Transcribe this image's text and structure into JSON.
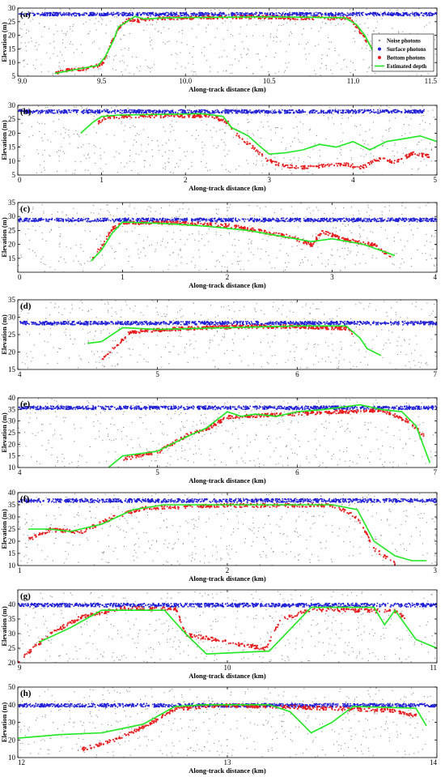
{
  "figure": {
    "colors": {
      "noise": "#8c8c8c",
      "surface": "#1f1fd6",
      "bottom": "#e8191b",
      "depth": "#1ee81e",
      "axis": "#000000"
    },
    "legend": {
      "entries": [
        {
          "key": "noise",
          "label": "Noise photons"
        },
        {
          "key": "surface",
          "label": "Surface photons"
        },
        {
          "key": "bottom",
          "label": "Bottom photons"
        },
        {
          "key": "depth",
          "label": "Estimated depth"
        }
      ]
    }
  },
  "chart_data": [
    {
      "id": "a",
      "panel_label": "(a)",
      "type": "scatter",
      "xlabel": "Along-track distance (km)",
      "ylabel": "Elevation (m)",
      "xlim": [
        9.0,
        11.5
      ],
      "ylim": [
        5,
        30
      ],
      "xticks": [
        9.0,
        9.5,
        10.0,
        10.5,
        11.0,
        11.5
      ],
      "xtick_labels": [
        "9.0",
        "9.5",
        "10.0",
        "10.5",
        "11.0",
        "11.5"
      ],
      "yticks": [
        5,
        10,
        15,
        20,
        25,
        30
      ],
      "ytick_labels": [
        "5",
        "10",
        "15",
        "20",
        "25",
        "30"
      ],
      "legend": true,
      "surface_level": 28,
      "surface_range": [
        9.0,
        11.5
      ],
      "noise_range": [
        9.0,
        11.5
      ],
      "depth": [
        [
          9.22,
          6
        ],
        [
          9.35,
          7.5
        ],
        [
          9.48,
          9
        ],
        [
          9.52,
          12
        ],
        [
          9.57,
          18
        ],
        [
          9.6,
          23
        ],
        [
          9.65,
          25
        ],
        [
          9.7,
          27
        ],
        [
          9.75,
          26
        ],
        [
          9.9,
          26.5
        ],
        [
          10.5,
          26.8
        ],
        [
          10.95,
          26.5
        ],
        [
          11.02,
          24
        ],
        [
          11.07,
          20
        ],
        [
          11.12,
          14
        ],
        [
          11.15,
          11
        ]
      ],
      "bottom": [
        [
          9.22,
          6.5
        ],
        [
          9.3,
          7.5
        ],
        [
          9.4,
          8
        ],
        [
          9.5,
          9.5
        ],
        [
          9.55,
          17
        ],
        [
          9.6,
          23
        ],
        [
          9.65,
          26
        ],
        [
          9.7,
          25.5
        ],
        [
          9.8,
          26.5
        ],
        [
          10.3,
          27
        ],
        [
          10.98,
          26.5
        ],
        [
          11.02,
          23
        ],
        [
          11.08,
          18
        ],
        [
          11.12,
          15
        ],
        [
          11.16,
          13
        ]
      ]
    },
    {
      "id": "b",
      "panel_label": "(b)",
      "type": "scatter",
      "xlabel": "Along-track distance (km)",
      "ylabel": "Elevation (m)",
      "xlim": [
        0,
        5
      ],
      "ylim": [
        5,
        30
      ],
      "xticks": [
        0,
        1,
        2,
        3,
        4,
        5
      ],
      "xtick_labels": [
        "0",
        "1",
        "2",
        "3",
        "4",
        "5"
      ],
      "yticks": [
        5,
        10,
        15,
        20,
        25,
        30
      ],
      "ytick_labels": [
        "5",
        "10",
        "15",
        "20",
        "25",
        "30"
      ],
      "legend": false,
      "surface_level": 28,
      "surface_range": [
        0.0,
        4.85
      ],
      "noise_range": [
        0.0,
        5.0
      ],
      "depth": [
        [
          0.75,
          20
        ],
        [
          0.9,
          24
        ],
        [
          1.0,
          26
        ],
        [
          1.2,
          26.5
        ],
        [
          2.2,
          27
        ],
        [
          2.45,
          26
        ],
        [
          2.55,
          22
        ],
        [
          2.75,
          19
        ],
        [
          2.9,
          15
        ],
        [
          3.0,
          12.5
        ],
        [
          3.2,
          13
        ],
        [
          3.4,
          14
        ],
        [
          3.6,
          16
        ],
        [
          3.8,
          15
        ],
        [
          4.0,
          17
        ],
        [
          4.2,
          14
        ],
        [
          4.4,
          17
        ],
        [
          4.6,
          18
        ],
        [
          4.8,
          19
        ],
        [
          5.0,
          17
        ]
      ],
      "bottom": [
        [
          0.95,
          24
        ],
        [
          1.05,
          26
        ],
        [
          1.5,
          26.5
        ],
        [
          2.3,
          26.5
        ],
        [
          2.5,
          24
        ],
        [
          2.6,
          20
        ],
        [
          2.8,
          15
        ],
        [
          2.95,
          11
        ],
        [
          3.1,
          9
        ],
        [
          3.3,
          8
        ],
        [
          3.5,
          8
        ],
        [
          3.7,
          9
        ],
        [
          3.9,
          9
        ],
        [
          4.1,
          8
        ],
        [
          4.3,
          11
        ],
        [
          4.5,
          10
        ],
        [
          4.7,
          13
        ],
        [
          4.9,
          12
        ]
      ]
    },
    {
      "id": "c",
      "panel_label": "(c)",
      "type": "scatter",
      "xlabel": "Along-track distance (km)",
      "ylabel": "Elevation (m)",
      "xlim": [
        0,
        4
      ],
      "ylim": [
        10,
        35
      ],
      "xticks": [
        0,
        1,
        2,
        3,
        4
      ],
      "xtick_labels": [
        "0",
        "1",
        "2",
        "3",
        "4"
      ],
      "yticks": [
        15,
        20,
        25,
        30,
        35
      ],
      "ytick_labels": [
        "15",
        "20",
        "25",
        "30",
        "35"
      ],
      "legend": false,
      "surface_level": 29,
      "surface_range": [
        0.0,
        4.0
      ],
      "noise_range": [
        0.0,
        4.0
      ],
      "depth": [
        [
          0.7,
          14
        ],
        [
          0.8,
          18
        ],
        [
          0.9,
          24
        ],
        [
          1.0,
          28
        ],
        [
          1.4,
          27.5
        ],
        [
          1.8,
          26.5
        ],
        [
          2.2,
          25
        ],
        [
          2.5,
          23
        ],
        [
          2.8,
          21
        ],
        [
          3.0,
          22
        ],
        [
          3.3,
          20
        ],
        [
          3.6,
          16
        ]
      ],
      "bottom": [
        [
          0.7,
          15
        ],
        [
          0.8,
          20
        ],
        [
          0.9,
          26
        ],
        [
          1.0,
          28
        ],
        [
          1.5,
          28
        ],
        [
          2.0,
          27
        ],
        [
          2.3,
          25
        ],
        [
          2.6,
          23
        ],
        [
          2.8,
          20
        ],
        [
          2.9,
          25
        ],
        [
          3.1,
          22
        ],
        [
          3.4,
          20
        ],
        [
          3.55,
          16
        ]
      ]
    },
    {
      "id": "d",
      "panel_label": "(d)",
      "type": "scatter",
      "xlabel": "",
      "ylabel": "Elevation (m)",
      "xlim": [
        4,
        7
      ],
      "ylim": [
        15,
        35
      ],
      "xticks": [
        4,
        5,
        6,
        7
      ],
      "xtick_labels": [
        "4",
        "5",
        "6",
        "7"
      ],
      "yticks": [
        15,
        20,
        25,
        30,
        35
      ],
      "ytick_labels": [
        "15",
        "20",
        "25",
        "30",
        "35"
      ],
      "legend": false,
      "surface_level": 28.5,
      "surface_range": [
        4.0,
        7.0
      ],
      "noise_range": [
        4.0,
        7.0
      ],
      "depth": [
        [
          4.5,
          22.5
        ],
        [
          4.6,
          23
        ],
        [
          4.75,
          27
        ],
        [
          5.0,
          26.5
        ],
        [
          5.5,
          27
        ],
        [
          6.0,
          27.5
        ],
        [
          6.35,
          27.5
        ],
        [
          6.45,
          24
        ],
        [
          6.5,
          21
        ],
        [
          6.6,
          19
        ]
      ],
      "bottom": [
        [
          4.6,
          18
        ],
        [
          4.7,
          22
        ],
        [
          4.8,
          26
        ],
        [
          5.2,
          27
        ],
        [
          5.6,
          27.5
        ],
        [
          6.0,
          27.5
        ],
        [
          6.35,
          27
        ],
        [
          6.4,
          25
        ]
      ]
    },
    {
      "id": "e",
      "panel_label": "(e)",
      "type": "scatter",
      "xlabel": "Along-track distance (km)",
      "ylabel": "Elevation (m)",
      "xlim": [
        4,
        7
      ],
      "ylim": [
        10,
        40
      ],
      "xticks": [
        4,
        5,
        6,
        7
      ],
      "xtick_labels": [
        "4",
        "5",
        "6",
        "7"
      ],
      "yticks": [
        10,
        15,
        20,
        25,
        30,
        35,
        40
      ],
      "ytick_labels": [
        "10",
        "15",
        "20",
        "25",
        "30",
        "35",
        "40"
      ],
      "legend": false,
      "surface_level": 36,
      "surface_range": [
        4.0,
        7.0
      ],
      "noise_range": [
        4.0,
        7.0
      ],
      "depth": [
        [
          4.65,
          10
        ],
        [
          4.75,
          15
        ],
        [
          5.0,
          17
        ],
        [
          5.2,
          23
        ],
        [
          5.35,
          27
        ],
        [
          5.5,
          34
        ],
        [
          5.6,
          32
        ],
        [
          5.7,
          33
        ],
        [
          5.85,
          32
        ],
        [
          6.0,
          34
        ],
        [
          6.2,
          35
        ],
        [
          6.45,
          37
        ],
        [
          6.6,
          35
        ],
        [
          6.75,
          34
        ],
        [
          6.85,
          28
        ],
        [
          6.95,
          12
        ]
      ],
      "bottom": [
        [
          4.75,
          14
        ],
        [
          5.0,
          17
        ],
        [
          5.2,
          24
        ],
        [
          5.35,
          27
        ],
        [
          5.5,
          32
        ],
        [
          5.85,
          33
        ],
        [
          6.2,
          34
        ],
        [
          6.6,
          35
        ],
        [
          6.8,
          30
        ],
        [
          6.9,
          24
        ]
      ]
    },
    {
      "id": "f",
      "panel_label": "(f)",
      "type": "scatter",
      "xlabel": "Along-track distance (km)",
      "ylabel": "Elevation (m)",
      "xlim": [
        1,
        3
      ],
      "ylim": [
        10,
        40
      ],
      "xticks": [
        1,
        2,
        3
      ],
      "xtick_labels": [
        "1",
        "2",
        "3"
      ],
      "yticks": [
        10,
        15,
        20,
        25,
        30,
        35,
        40
      ],
      "ytick_labels": [
        "10",
        "15",
        "20",
        "25",
        "30",
        "35",
        "40"
      ],
      "legend": false,
      "surface_level": 37,
      "surface_range": [
        1.0,
        3.0
      ],
      "noise_range": [
        1.0,
        3.0
      ],
      "depth": [
        [
          1.05,
          25
        ],
        [
          1.15,
          25
        ],
        [
          1.25,
          24
        ],
        [
          1.4,
          27
        ],
        [
          1.55,
          33
        ],
        [
          1.7,
          35
        ],
        [
          2.0,
          35
        ],
        [
          2.5,
          35
        ],
        [
          2.62,
          33
        ],
        [
          2.7,
          20
        ],
        [
          2.8,
          14
        ],
        [
          2.88,
          12
        ],
        [
          2.95,
          12
        ]
      ],
      "bottom": [
        [
          1.05,
          21
        ],
        [
          1.15,
          25
        ],
        [
          1.3,
          24
        ],
        [
          1.45,
          30
        ],
        [
          1.6,
          34
        ],
        [
          2.0,
          35
        ],
        [
          2.5,
          35
        ],
        [
          2.62,
          30
        ],
        [
          2.7,
          17
        ],
        [
          2.8,
          11
        ]
      ]
    },
    {
      "id": "g",
      "panel_label": "(g)",
      "type": "scatter",
      "xlabel": "Along-track distance (km)",
      "ylabel": "Elevation (m)",
      "xlim": [
        9,
        11
      ],
      "ylim": [
        20,
        45
      ],
      "xticks": [
        9,
        10,
        11
      ],
      "xtick_labels": [
        "9",
        "10",
        "11"
      ],
      "yticks": [
        20,
        25,
        30,
        35,
        40
      ],
      "ytick_labels": [
        "20",
        "25",
        "30",
        "35",
        "40"
      ],
      "legend": false,
      "surface_level": 40,
      "surface_range": [
        9.0,
        11.0
      ],
      "noise_range": [
        9.0,
        11.0
      ],
      "depth": [
        [
          9.1,
          27
        ],
        [
          9.25,
          32
        ],
        [
          9.4,
          38
        ],
        [
          9.7,
          38
        ],
        [
          9.8,
          30
        ],
        [
          9.9,
          23
        ],
        [
          10.2,
          24
        ],
        [
          10.4,
          39
        ],
        [
          10.7,
          39
        ],
        [
          10.75,
          33
        ],
        [
          10.8,
          38
        ],
        [
          10.9,
          28
        ],
        [
          11.0,
          25
        ]
      ],
      "bottom": [
        [
          9.0,
          21
        ],
        [
          9.15,
          30
        ],
        [
          9.3,
          36
        ],
        [
          9.5,
          39
        ],
        [
          9.75,
          38.5
        ],
        [
          9.8,
          30
        ],
        [
          10.18,
          25
        ],
        [
          10.25,
          35
        ],
        [
          10.4,
          38.5
        ],
        [
          10.7,
          38
        ],
        [
          10.8,
          38
        ],
        [
          10.85,
          35
        ]
      ]
    },
    {
      "id": "h",
      "panel_label": "(h)",
      "type": "scatter",
      "xlabel": "Along-track distance (km)",
      "ylabel": "Elevation (m)",
      "xlim": [
        12,
        14
      ],
      "ylim": [
        10,
        50
      ],
      "xticks": [
        12,
        13,
        14
      ],
      "xtick_labels": [
        "12",
        "13",
        "14"
      ],
      "yticks": [
        10,
        20,
        30,
        40,
        50
      ],
      "ytick_labels": [
        "10",
        "20",
        "30",
        "40",
        "50"
      ],
      "legend": false,
      "surface_level": 40,
      "surface_range": [
        12.0,
        14.0
      ],
      "noise_range": [
        12.0,
        14.0
      ],
      "depth": [
        [
          12.0,
          21
        ],
        [
          12.2,
          23
        ],
        [
          12.4,
          24
        ],
        [
          12.6,
          29
        ],
        [
          12.75,
          39
        ],
        [
          12.9,
          40
        ],
        [
          13.2,
          40
        ],
        [
          13.3,
          36
        ],
        [
          13.4,
          24
        ],
        [
          13.5,
          30
        ],
        [
          13.6,
          39
        ],
        [
          13.9,
          38
        ],
        [
          13.95,
          28
        ]
      ],
      "bottom": [
        [
          12.3,
          15
        ],
        [
          12.45,
          20
        ],
        [
          12.6,
          28
        ],
        [
          12.75,
          38
        ],
        [
          12.95,
          40
        ],
        [
          13.2,
          39.5
        ],
        [
          13.55,
          38
        ],
        [
          13.8,
          37
        ],
        [
          13.9,
          34
        ]
      ]
    }
  ]
}
